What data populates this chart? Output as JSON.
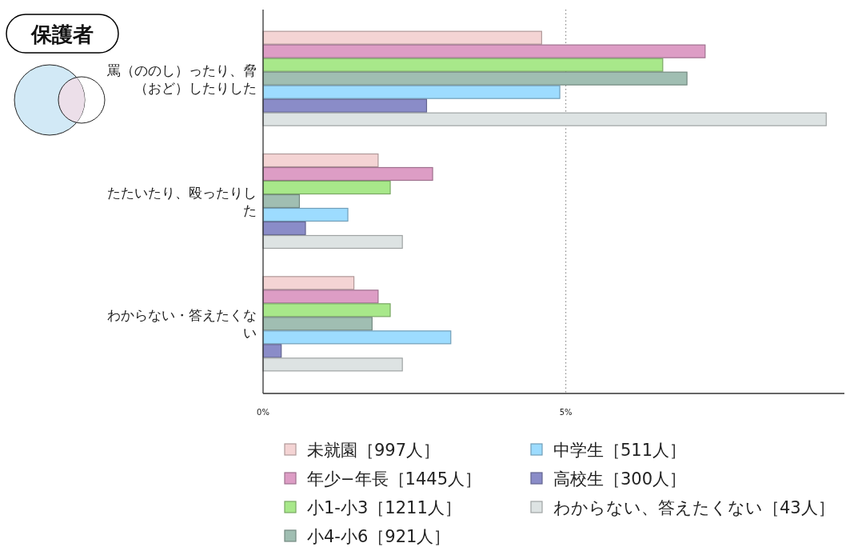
{
  "chart_data": {
    "type": "bar",
    "orientation": "horizontal",
    "title": "保護者",
    "categories": [
      "罵（ののし）ったり、脅（おど）したりした",
      "たたいたり、殴ったりした",
      "わからない・答えたくない"
    ],
    "series": [
      {
        "name": "未就園［997人］",
        "color": "#f4d4d4",
        "values": [
          4.6,
          1.9,
          1.5
        ]
      },
      {
        "name": "年少−年長［1445人］",
        "color": "#dd9dc5",
        "values": [
          7.3,
          2.8,
          1.9
        ]
      },
      {
        "name": "小1-小3［1211人］",
        "color": "#a8e88a",
        "values": [
          6.6,
          2.1,
          2.1
        ]
      },
      {
        "name": "小4-小6［921人］",
        "color": "#a0beb2",
        "values": [
          7.0,
          0.6,
          1.8
        ]
      },
      {
        "name": "中学生［511人］",
        "color": "#9ddcff",
        "values": [
          4.9,
          1.4,
          3.1
        ]
      },
      {
        "name": "高校生［300人］",
        "color": "#8a8cc8",
        "values": [
          2.7,
          0.7,
          0.3
        ]
      },
      {
        "name": "わからない、答えたくない［43人］",
        "color": "#dde3e3",
        "values": [
          9.3,
          2.3,
          2.3
        ]
      }
    ],
    "xlim": [
      0,
      9.6
    ],
    "xticks": [
      {
        "value": 0,
        "label": "0%"
      },
      {
        "value": 5,
        "label": "5%"
      }
    ],
    "grid": "x",
    "legend": "bottom"
  }
}
